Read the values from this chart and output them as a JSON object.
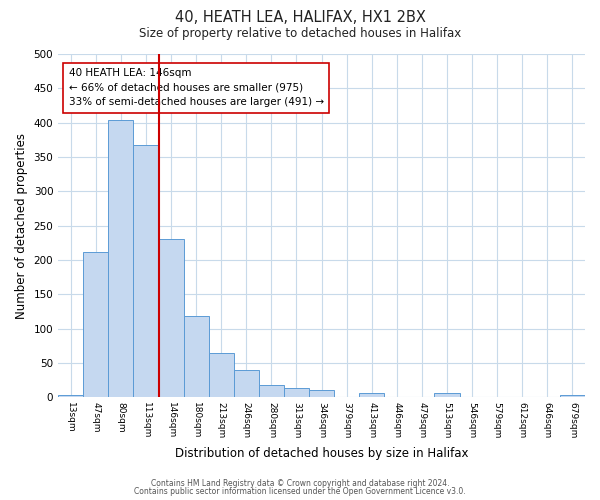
{
  "title": "40, HEATH LEA, HALIFAX, HX1 2BX",
  "subtitle": "Size of property relative to detached houses in Halifax",
  "xlabel": "Distribution of detached houses by size in Halifax",
  "ylabel": "Number of detached properties",
  "bar_labels": [
    "13sqm",
    "47sqm",
    "80sqm",
    "113sqm",
    "146sqm",
    "180sqm",
    "213sqm",
    "246sqm",
    "280sqm",
    "313sqm",
    "346sqm",
    "379sqm",
    "413sqm",
    "446sqm",
    "479sqm",
    "513sqm",
    "546sqm",
    "579sqm",
    "612sqm",
    "646sqm",
    "679sqm"
  ],
  "bar_heights": [
    3,
    212,
    404,
    368,
    230,
    118,
    64,
    40,
    18,
    14,
    11,
    0,
    7,
    0,
    0,
    6,
    0,
    0,
    0,
    0,
    4
  ],
  "bar_color": "#c5d8f0",
  "bar_edge_color": "#5b9bd5",
  "bar_width": 1.0,
  "vline_x": 3.5,
  "vline_color": "#cc0000",
  "annotation_text": "40 HEATH LEA: 146sqm\n← 66% of detached houses are smaller (975)\n33% of semi-detached houses are larger (491) →",
  "annotation_box_color": "#ffffff",
  "annotation_box_edge_color": "#cc0000",
  "ylim": [
    0,
    500
  ],
  "yticks": [
    0,
    50,
    100,
    150,
    200,
    250,
    300,
    350,
    400,
    450,
    500
  ],
  "footer_line1": "Contains HM Land Registry data © Crown copyright and database right 2024.",
  "footer_line2": "Contains public sector information licensed under the Open Government Licence v3.0.",
  "bg_color": "#ffffff",
  "grid_color": "#c8daea"
}
